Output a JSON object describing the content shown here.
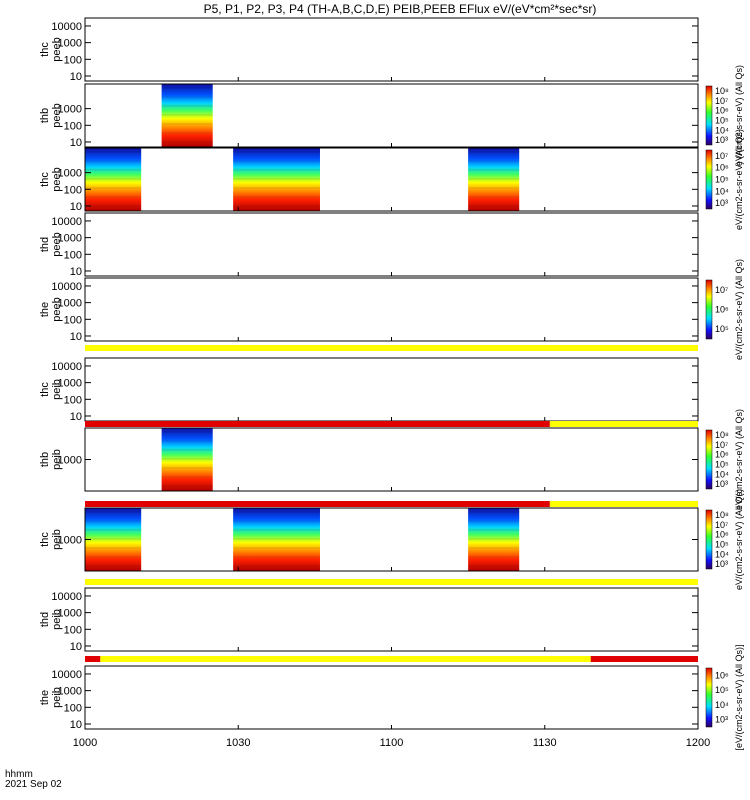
{
  "title": "P5, P1, P2, P3, P4 (TH-A,B,C,D,E) PEIB,PEEB EFlux eV/(eV*cm²*sec*sr)",
  "x_axis": {
    "label_line1": "hhmm",
    "label_line2": "2021 Sep 02",
    "ticks": [
      "1000",
      "1030",
      "1100",
      "1130",
      "1200"
    ]
  },
  "colors": {
    "bar_yellow": "#ffff00",
    "bar_red": "#e00000",
    "text": "#000000",
    "background": "#ffffff"
  },
  "chart_data": {
    "type": "heatmap",
    "x_range": [
      "10:00",
      "12:00"
    ],
    "panels": [
      {
        "id": "thc_peeb_top",
        "label1": "thc",
        "label2": "peeb",
        "yticks": [
          "10",
          "100",
          "1000",
          "10000"
        ],
        "ylim": [
          5,
          30000
        ],
        "blocks": []
      },
      {
        "id": "thb_peeb",
        "label1": "thb",
        "label2": "peeb",
        "yticks": [
          "10",
          "100",
          "1000"
        ],
        "ylim": [
          5,
          30000
        ],
        "blocks": [
          [
            "10:15",
            "10:25"
          ]
        ]
      },
      {
        "id": "thc_peeb",
        "label1": "thc",
        "label2": "peeb",
        "yticks": [
          "10",
          "100",
          "1000"
        ],
        "ylim": [
          5,
          30000
        ],
        "blocks": [
          [
            "10:00",
            "10:11"
          ],
          [
            "10:29",
            "10:46"
          ],
          [
            "11:15",
            "11:25"
          ]
        ]
      },
      {
        "id": "thd_peeb",
        "label1": "thd",
        "label2": "peeb",
        "yticks": [
          "10",
          "100",
          "1000",
          "10000"
        ],
        "ylim": [
          5,
          30000
        ],
        "blocks": []
      },
      {
        "id": "the_peeb",
        "label1": "the",
        "label2": "peeb",
        "yticks": [
          "10",
          "100",
          "1000",
          "10000"
        ],
        "ylim": [
          5,
          30000
        ],
        "blocks": []
      },
      {
        "id": "thc_peib",
        "label1": "thc",
        "label2": "peib",
        "yticks": [
          "10",
          "100",
          "1000",
          "10000"
        ],
        "ylim": [
          5,
          30000
        ],
        "blocks": []
      },
      {
        "id": "thb_peib",
        "label1": "thb",
        "label2": "peib",
        "yticks": [
          "1000"
        ],
        "ylim": [
          200,
          5000
        ],
        "blocks": [
          [
            "10:15",
            "10:25"
          ]
        ]
      },
      {
        "id": "thc_peib",
        "label1": "thc",
        "label2": "peib",
        "yticks": [
          "1000"
        ],
        "ylim": [
          200,
          5000
        ],
        "blocks": [
          [
            "10:00",
            "10:11"
          ],
          [
            "10:29",
            "10:46"
          ],
          [
            "11:15",
            "11:25"
          ]
        ]
      },
      {
        "id": "thd_peib",
        "label1": "thd",
        "label2": "peib",
        "yticks": [
          "10",
          "100",
          "1000",
          "10000"
        ],
        "ylim": [
          5,
          30000
        ],
        "blocks": []
      },
      {
        "id": "the_peib",
        "label1": "the",
        "label2": "peib",
        "yticks": [
          "10",
          "100",
          "1000",
          "10000"
        ],
        "ylim": [
          5,
          30000
        ],
        "blocks": []
      }
    ],
    "flag_bars": [
      {
        "after_panel": 4,
        "segments": [
          {
            "from": "10:00",
            "to": "12:00",
            "color": "yellow"
          }
        ]
      },
      {
        "after_panel": 5,
        "segments": [
          {
            "from": "10:00",
            "to": "11:31",
            "color": "red"
          },
          {
            "from": "11:31",
            "to": "12:00",
            "color": "yellow"
          }
        ]
      },
      {
        "after_panel": 6,
        "segments": [
          {
            "from": "10:00",
            "to": "11:31",
            "color": "red"
          },
          {
            "from": "11:31",
            "to": "12:00",
            "color": "yellow"
          }
        ]
      },
      {
        "after_panel": 7,
        "segments": [
          {
            "from": "10:00",
            "to": "12:00",
            "color": "yellow"
          }
        ]
      },
      {
        "after_panel": 8,
        "segments": [
          {
            "from": "10:00",
            "to": "10:03",
            "color": "red"
          },
          {
            "from": "10:03",
            "to": "11:39",
            "color": "yellow"
          },
          {
            "from": "11:39",
            "to": "12:00",
            "color": "red"
          }
        ]
      }
    ],
    "colorbars": [
      {
        "panel": 1,
        "ticks": [
          "10³",
          "10⁴",
          "10⁵",
          "10⁶",
          "10⁷",
          "10⁸"
        ],
        "label": "eV/(cm2-s-sr-eV) (All Qs)"
      },
      {
        "panel": 2,
        "ticks": [
          "10³",
          "10⁴",
          "10⁵",
          "10⁶",
          "10⁷"
        ],
        "label": "eV/(cm2-s-sr-eV) (All Qs)"
      },
      {
        "panel": 4,
        "ticks": [
          "10⁵",
          "10⁶",
          "10⁷"
        ],
        "label": "eV/(cm2-s-sr-eV) (All Qs)"
      },
      {
        "panel": 6,
        "ticks": [
          "10³",
          "10⁴",
          "10⁵",
          "10⁶",
          "10⁷",
          "10⁸"
        ],
        "label": "eV/(cm2-s-sr-eV) (All Qs)"
      },
      {
        "panel": 7,
        "ticks": [
          "10³",
          "10⁴",
          "10⁵",
          "10⁶",
          "10⁷",
          "10⁸"
        ],
        "label": "eV/(cm2-s-sr-eV) (All Qs)"
      },
      {
        "panel": 9,
        "ticks": [
          "10³",
          "10⁴",
          "10⁵",
          "10⁶"
        ],
        "label": "[eV/(cm2-s-sr-eV) (All Qs)]"
      }
    ]
  }
}
